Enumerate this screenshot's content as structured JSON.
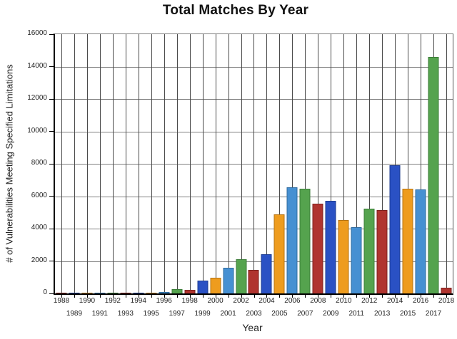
{
  "chart_data": {
    "type": "bar",
    "title": "Total Matches By Year",
    "xlabel": "Year",
    "ylabel": "# of Vulnerabilities Meeting Specified Limitations",
    "ylim": [
      0,
      16000
    ],
    "yticks": [
      0,
      2000,
      4000,
      6000,
      8000,
      10000,
      12000,
      14000,
      16000
    ],
    "grid": "both",
    "legend": "none",
    "categories": [
      1988,
      1989,
      1990,
      1991,
      1992,
      1993,
      1994,
      1995,
      1996,
      1997,
      1998,
      1999,
      2000,
      2001,
      2002,
      2003,
      2004,
      2005,
      2006,
      2007,
      2008,
      2009,
      2010,
      2011,
      2012,
      2013,
      2014,
      2015,
      2016,
      2017,
      2018
    ],
    "values": [
      2,
      3,
      4,
      8,
      12,
      15,
      20,
      25,
      100,
      250,
      230,
      800,
      950,
      1600,
      2100,
      1450,
      2400,
      4900,
      6550,
      6450,
      5550,
      5700,
      4550,
      4100,
      5250,
      5150,
      7900,
      6450,
      6400,
      14600,
      350
    ],
    "color_cycle": [
      "red",
      "blue",
      "orange",
      "light_blue",
      "green"
    ],
    "palette": {
      "red": {
        "fill": "#b0342f",
        "stroke": "#7e211d"
      },
      "blue": {
        "fill": "#2a51c4",
        "stroke": "#1b3a8f"
      },
      "orange": {
        "fill": "#ee9c1e",
        "stroke": "#b57312"
      },
      "light_blue": {
        "fill": "#4690d2",
        "stroke": "#2f6b9f"
      },
      "green": {
        "fill": "#55a34e",
        "stroke": "#3c7d38"
      }
    },
    "axis_color": "#000000",
    "gridline_color": "#808080"
  }
}
